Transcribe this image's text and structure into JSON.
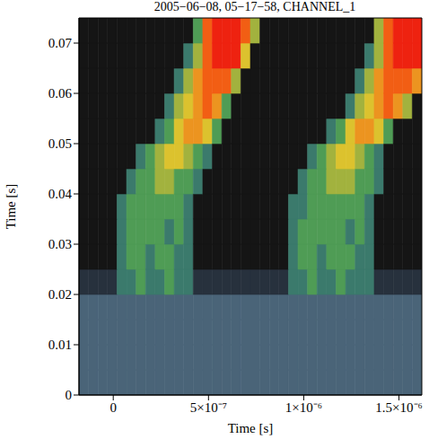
{
  "chart_data": {
    "type": "heatmap",
    "title": "2005−06−08, 05−17−58, CHANNEL_1",
    "x_label": "Time [s]",
    "y_label": "Time [s]",
    "xlim": [
      -1.8e-07,
      1.62e-06
    ],
    "ylim": [
      0,
      0.075
    ],
    "xticks": [
      0,
      {
        "value": 5e-07,
        "label": "5×10⁻⁷"
      },
      {
        "value": 1e-06,
        "label": "1×10⁻⁶"
      },
      {
        "value": 1.5e-06,
        "label": "1.5×10⁻⁶"
      }
    ],
    "yticks": [
      0,
      0.01,
      0.02,
      0.03,
      0.04,
      0.05,
      0.06,
      0.07
    ],
    "x_bins": [
      -1.8e-07,
      -1.3e-07,
      -8e-08,
      -3e-08,
      2e-08,
      7e-08,
      1.2e-07,
      1.7e-07,
      2.2e-07,
      2.7e-07,
      3.2e-07,
      3.7e-07,
      4.2e-07,
      4.7e-07,
      5.2e-07,
      5.7e-07,
      6.2e-07,
      6.7e-07,
      7.2e-07,
      7.7e-07,
      8.2e-07,
      8.7e-07,
      9.2e-07,
      9.7e-07,
      1.02e-06,
      1.07e-06,
      1.12e-06,
      1.17e-06,
      1.22e-06,
      1.27e-06,
      1.32e-06,
      1.37e-06,
      1.42e-06,
      1.47e-06,
      1.52e-06,
      1.57e-06,
      1.62e-06
    ],
    "y_bins": [
      0,
      0.005,
      0.01,
      0.015,
      0.02,
      0.025,
      0.03,
      0.035,
      0.04,
      0.045,
      0.05,
      0.055,
      0.06,
      0.065,
      0.07,
      0.075
    ],
    "cells": [
      [
        2,
        2,
        2,
        2,
        2,
        2,
        2,
        2,
        2,
        2,
        2,
        2,
        2,
        2,
        2,
        2,
        2,
        2,
        2,
        2,
        2,
        2,
        2,
        2,
        2,
        2,
        2,
        2,
        2,
        2,
        2,
        2,
        2,
        2,
        2,
        2
      ],
      [
        2,
        2,
        2,
        2,
        2,
        2,
        2,
        2,
        2,
        2,
        2,
        2,
        2,
        2,
        2,
        2,
        2,
        2,
        2,
        2,
        2,
        2,
        2,
        2,
        2,
        2,
        2,
        2,
        2,
        2,
        2,
        2,
        2,
        2,
        2,
        2
      ],
      [
        2,
        2,
        2,
        2,
        2,
        2,
        2,
        2,
        2,
        2,
        2,
        2,
        2,
        2,
        2,
        2,
        2,
        2,
        2,
        2,
        2,
        2,
        2,
        2,
        2,
        2,
        2,
        2,
        2,
        2,
        2,
        2,
        2,
        2,
        2,
        2
      ],
      [
        2,
        2,
        2,
        2,
        2,
        2,
        2,
        2,
        2,
        2,
        2,
        2,
        2,
        2,
        2,
        2,
        2,
        2,
        2,
        2,
        2,
        2,
        2,
        2,
        2,
        2,
        2,
        2,
        2,
        2,
        2,
        2,
        2,
        2,
        2,
        2
      ],
      [
        1,
        1,
        1,
        1,
        3,
        3,
        4,
        3,
        3,
        4,
        3,
        3,
        1,
        1,
        1,
        1,
        1,
        1,
        1,
        1,
        1,
        1,
        3,
        3,
        4,
        3,
        3,
        4,
        3,
        3,
        3,
        1,
        1,
        1,
        1,
        1
      ],
      [
        0,
        0,
        0,
        0,
        3,
        4,
        4,
        3,
        4,
        4,
        3,
        3,
        0,
        0,
        0,
        0,
        0,
        0,
        0,
        0,
        0,
        0,
        3,
        4,
        4,
        3,
        4,
        4,
        4,
        3,
        3,
        0,
        0,
        0,
        0,
        0
      ],
      [
        0,
        0,
        0,
        0,
        3,
        4,
        4,
        4,
        4,
        3,
        4,
        3,
        0,
        0,
        0,
        0,
        0,
        0,
        0,
        0,
        0,
        0,
        3,
        4,
        4,
        4,
        4,
        4,
        3,
        4,
        3,
        0,
        0,
        0,
        0,
        0
      ],
      [
        0,
        0,
        0,
        0,
        3,
        4,
        4,
        4,
        4,
        4,
        4,
        3,
        0,
        0,
        0,
        0,
        0,
        0,
        0,
        0,
        0,
        0,
        3,
        3,
        4,
        4,
        4,
        4,
        4,
        4,
        3,
        0,
        0,
        0,
        0,
        0
      ],
      [
        0,
        0,
        0,
        0,
        0,
        3,
        4,
        4,
        5,
        5,
        4,
        4,
        3,
        0,
        0,
        0,
        0,
        0,
        0,
        0,
        0,
        0,
        0,
        3,
        4,
        4,
        5,
        5,
        5,
        4,
        4,
        3,
        0,
        0,
        0,
        0
      ],
      [
        0,
        0,
        0,
        0,
        0,
        0,
        3,
        4,
        5,
        6,
        6,
        5,
        4,
        3,
        0,
        0,
        0,
        0,
        0,
        0,
        0,
        0,
        0,
        0,
        3,
        4,
        5,
        6,
        6,
        5,
        4,
        3,
        0,
        0,
        0,
        0
      ],
      [
        0,
        0,
        0,
        0,
        0,
        0,
        0,
        0,
        3,
        4,
        6,
        7,
        7,
        6,
        4,
        0,
        0,
        0,
        0,
        0,
        0,
        0,
        0,
        0,
        0,
        0,
        3,
        4,
        6,
        7,
        7,
        6,
        4,
        0,
        0,
        0
      ],
      [
        0,
        0,
        0,
        0,
        0,
        0,
        0,
        0,
        0,
        3,
        5,
        6,
        7,
        8,
        7,
        4,
        0,
        0,
        0,
        0,
        0,
        0,
        0,
        0,
        0,
        0,
        0,
        0,
        3,
        5,
        6,
        7,
        8,
        7,
        5,
        0
      ],
      [
        0,
        0,
        0,
        0,
        0,
        0,
        0,
        0,
        0,
        0,
        3,
        5,
        7,
        8,
        8,
        8,
        5,
        0,
        0,
        0,
        0,
        0,
        0,
        0,
        0,
        0,
        0,
        0,
        0,
        3,
        5,
        7,
        8,
        8,
        8,
        7
      ],
      [
        0,
        0,
        0,
        0,
        0,
        0,
        0,
        0,
        0,
        0,
        0,
        3,
        5,
        8,
        9,
        9,
        9,
        6,
        0,
        0,
        0,
        0,
        0,
        0,
        0,
        0,
        0,
        0,
        0,
        0,
        3,
        5,
        8,
        9,
        9,
        9
      ],
      [
        0,
        0,
        0,
        0,
        0,
        0,
        0,
        0,
        0,
        0,
        0,
        0,
        4,
        8,
        9,
        9,
        9,
        8,
        5,
        0,
        0,
        0,
        0,
        0,
        0,
        0,
        0,
        0,
        0,
        0,
        0,
        5,
        8,
        9,
        9,
        9
      ]
    ]
  }
}
